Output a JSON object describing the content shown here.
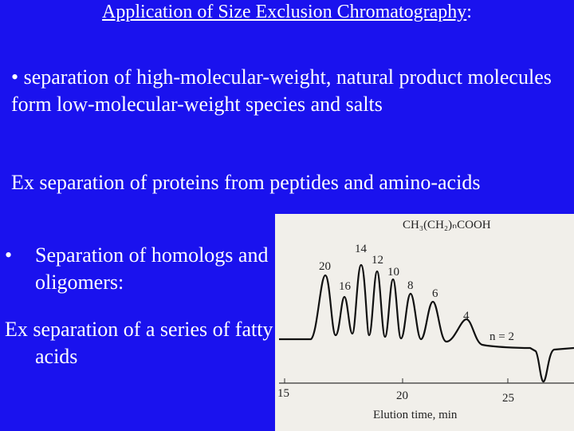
{
  "title": {
    "text": "Application of Size Exclusion Chromatography",
    "suffix": ":"
  },
  "paragraphs": [
    "• separation of high-molecular-weight, natural product molecules form low-molecular-weight species and salts",
    "Ex separation of proteins from peptides and amino-acids"
  ],
  "bullet": {
    "marker": "•",
    "text": "Separation of homologs and oligomers:"
  },
  "example": "Ex separation of a series of fatty acids",
  "figure": {
    "formula": "CH₃(CH₂)ₙCOOH",
    "peak_labels": [
      20,
      16,
      14,
      12,
      10,
      8,
      6,
      4
    ],
    "last_label": "n = 2",
    "x_ticks": [
      15,
      20,
      25
    ],
    "x_label": "Elution time, min"
  }
}
